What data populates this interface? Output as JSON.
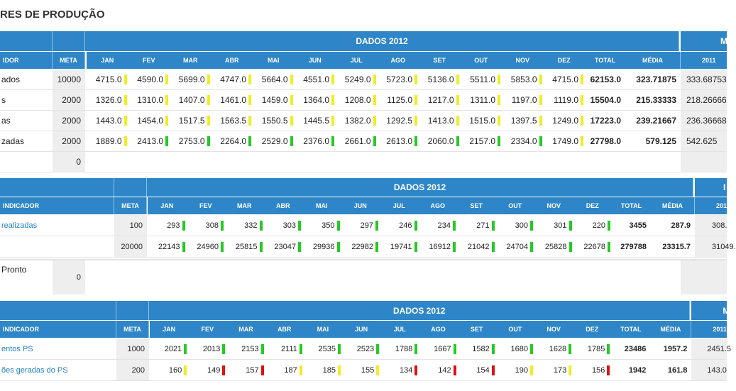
{
  "page_title": "RES DE PRODUÇÃO",
  "colors": {
    "header_blue": "#2e86c8",
    "green": "#22cc22",
    "yellow": "#eeee22",
    "red": "#dd1111",
    "link": "#2480c0"
  },
  "headers": {
    "dados": "DADOS 2012",
    "indicador": "INDICADOR",
    "indicador_s1": "IDOR",
    "meta": "META",
    "months": [
      "JAN",
      "FEV",
      "MAR",
      "ABR",
      "MAI",
      "JUN",
      "JUL",
      "AGO",
      "SET",
      "OUT",
      "NOV",
      "DEZ"
    ],
    "total": "TOTAL",
    "media": "MÉDIA",
    "year_2011": "2011",
    "next_s1": "M",
    "next_s2": "I",
    "next_s3": "M"
  },
  "section1": {
    "rows": [
      {
        "label": "ados",
        "meta": "10000",
        "months": [
          "4715.0",
          "4590.0",
          "5699.0",
          "4747.0",
          "5664.0",
          "4551.0",
          "5249.0",
          "5723.0",
          "5136.0",
          "5511.0",
          "5853.0",
          "4715.0"
        ],
        "status": [
          "yellow",
          "yellow",
          "yellow",
          "yellow",
          "yellow",
          "yellow",
          "yellow",
          "yellow",
          "yellow",
          "yellow",
          "yellow",
          "yellow"
        ],
        "total": "62153.0",
        "media": "323.71875",
        "prev": "333.68753"
      },
      {
        "label": "s",
        "meta": "2000",
        "months": [
          "1326.0",
          "1310.0",
          "1407.0",
          "1461.0",
          "1459.0",
          "1364.0",
          "1208.0",
          "1125.0",
          "1217.0",
          "1311.0",
          "1197.0",
          "1119.0"
        ],
        "status": [
          "yellow",
          "yellow",
          "yellow",
          "yellow",
          "yellow",
          "yellow",
          "yellow",
          "yellow",
          "yellow",
          "yellow",
          "yellow",
          "yellow"
        ],
        "total": "15504.0",
        "media": "215.33333",
        "prev": "218.26666"
      },
      {
        "label": "as",
        "meta": "2000",
        "months": [
          "1443.0",
          "1454.0",
          "1517.5",
          "1563.5",
          "1550.5",
          "1445.5",
          "1382.0",
          "1292.5",
          "1413.0",
          "1515.0",
          "1397.5",
          "1249.0"
        ],
        "status": [
          "yellow",
          "yellow",
          "yellow",
          "yellow",
          "yellow",
          "yellow",
          "yellow",
          "yellow",
          "yellow",
          "yellow",
          "yellow",
          "yellow"
        ],
        "total": "17223.0",
        "media": "239.21667",
        "prev": "236.36668"
      },
      {
        "label": "zadas",
        "meta": "2000",
        "months": [
          "1889.0",
          "2413.0",
          "2753.0",
          "2264.0",
          "2529.0",
          "2376.0",
          "2661.0",
          "2613.0",
          "2060.0",
          "2157.0",
          "2334.0",
          "1749.0"
        ],
        "status": [
          "yellow",
          "green",
          "green",
          "green",
          "green",
          "green",
          "green",
          "green",
          "green",
          "green",
          "green",
          "yellow"
        ],
        "total": "27798.0",
        "media": "579.125",
        "prev": "542.625"
      }
    ],
    "empty_meta": "0"
  },
  "section2": {
    "rows": [
      {
        "label": "realizadas",
        "meta": "100",
        "months": [
          "293",
          "308",
          "332",
          "303",
          "350",
          "297",
          "246",
          "234",
          "271",
          "300",
          "301",
          "220"
        ],
        "status": [
          "green",
          "green",
          "green",
          "green",
          "green",
          "green",
          "green",
          "green",
          "green",
          "green",
          "green",
          "green"
        ],
        "total": "3455",
        "media": "287.9",
        "prev": "308."
      },
      {
        "label": "",
        "meta": "20000",
        "months": [
          "22143",
          "24960",
          "25815",
          "23047",
          "29936",
          "22982",
          "19741",
          "16912",
          "21042",
          "24704",
          "25828",
          "22678"
        ],
        "status": [
          "green",
          "green",
          "green",
          "green",
          "green",
          "green",
          "green",
          "green",
          "green",
          "green",
          "green",
          "green"
        ],
        "total": "279788",
        "media": "23315.7",
        "prev": "31049."
      }
    ],
    "pronto_label": "Pronto",
    "pronto_meta": "0"
  },
  "section3": {
    "rows": [
      {
        "label": "entos PS",
        "meta": "1000",
        "months": [
          "2021",
          "2013",
          "2153",
          "2111",
          "2535",
          "2523",
          "1788",
          "1667",
          "1582",
          "1680",
          "1628",
          "1785"
        ],
        "status": [
          "green",
          "green",
          "green",
          "green",
          "green",
          "green",
          "green",
          "green",
          "green",
          "green",
          "green",
          "green"
        ],
        "total": "23486",
        "media": "1957.2",
        "prev": "2451.5"
      },
      {
        "label": "ões geradas do PS",
        "meta": "200",
        "months": [
          "160",
          "149",
          "157",
          "187",
          "185",
          "155",
          "134",
          "142",
          "154",
          "190",
          "173",
          "156"
        ],
        "status": [
          "yellow",
          "red",
          "red",
          "yellow",
          "yellow",
          "yellow",
          "red",
          "red",
          "red",
          "yellow",
          "yellow",
          "red"
        ],
        "total": "1942",
        "media": "161.8",
        "prev": "143.0"
      }
    ]
  }
}
